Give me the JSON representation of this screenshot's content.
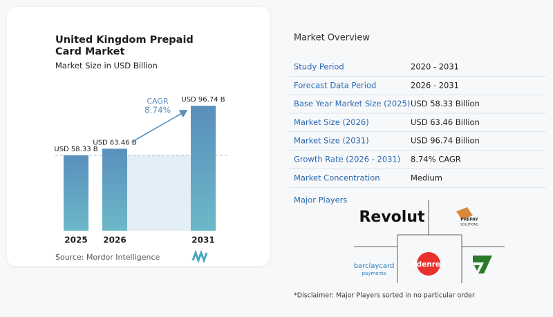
{
  "chart_data": {
    "type": "bar",
    "title": "United Kingdom Prepaid Card Market",
    "subtitle": "Market Size in USD Billion",
    "categories": [
      "2025",
      "2026",
      "2031"
    ],
    "values": [
      58.33,
      63.46,
      96.74
    ],
    "value_labels": [
      "USD 58.33 B",
      "USD 63.46 B",
      "USD 96.74 B"
    ],
    "color": "#5a97bd",
    "ylim": [
      0,
      100
    ],
    "annotation": {
      "label": "CAGR",
      "value": "8.74%"
    },
    "source": "Source:  Mordor Intelligence"
  },
  "market_overview": {
    "title": "Market Overview",
    "rows": [
      [
        "Study Period",
        "2020 - 2031"
      ],
      [
        "Forecast Data Period",
        "2026 - 2031"
      ],
      [
        "Base Year Market Size (2025)",
        "USD 58.33 Billion"
      ],
      [
        "Market Size (2026)",
        "USD 63.46 Billion"
      ],
      [
        "Market Size (2031)",
        "USD 96.74 Billion"
      ],
      [
        "Growth Rate (2026 - 2031)",
        "8.74% CAGR"
      ],
      [
        "Market Concentration",
        "Medium"
      ]
    ]
  },
  "major_players": {
    "title": "Major Players",
    "players": [
      "Revolut",
      "PREPAY",
      "SOLUTIONS",
      "barclaycard",
      "payments",
      "Edenred"
    ]
  },
  "disclaimer": "*Disclaimer: Major Players sorted in no particular order"
}
